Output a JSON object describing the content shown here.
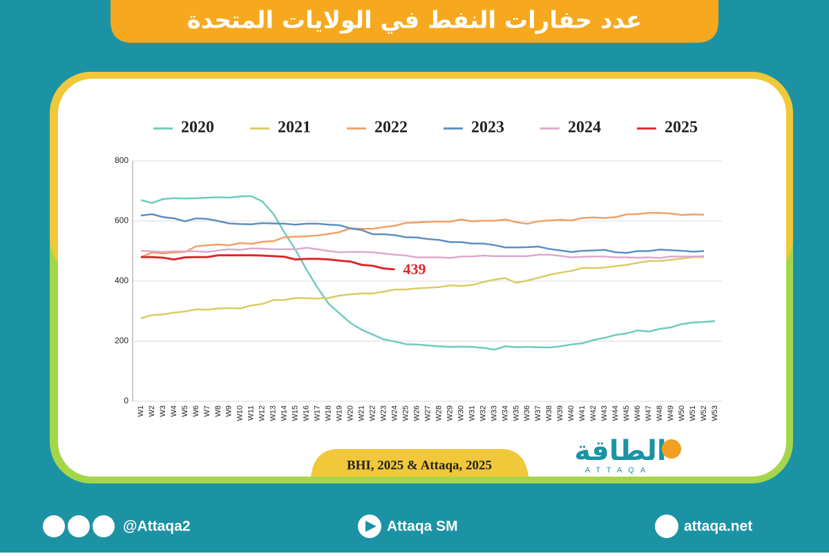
{
  "header": {
    "title": "عدد حفارات النفط في الولايات المتحدة"
  },
  "chart_data": {
    "type": "line",
    "categories": [
      "W1",
      "W2",
      "W3",
      "W4",
      "W5",
      "W6",
      "W7",
      "W8",
      "W9",
      "W10",
      "W11",
      "W12",
      "W13",
      "W14",
      "W15",
      "W16",
      "W17",
      "W18",
      "W19",
      "W20",
      "W21",
      "W22",
      "W23",
      "W24",
      "W25",
      "W26",
      "W27",
      "W28",
      "W29",
      "W30",
      "W31",
      "W32",
      "W33",
      "W34",
      "W35",
      "W36",
      "W37",
      "W38",
      "W39",
      "W40",
      "W41",
      "W42",
      "W43",
      "W44",
      "W45",
      "W46",
      "W47",
      "W48",
      "W49",
      "W50",
      "W51",
      "W52",
      "W53"
    ],
    "series": [
      {
        "name": "2020",
        "color": "#6ccbbf",
        "values": [
          670,
          660,
          673,
          676,
          675,
          676,
          678,
          679,
          678,
          682,
          683,
          665,
          624,
          562,
          504,
          438,
          378,
          325,
          292,
          260,
          238,
          222,
          206,
          199,
          190,
          189,
          186,
          183,
          181,
          182,
          181,
          178,
          172,
          183,
          180,
          181,
          180,
          179,
          183,
          189,
          193,
          204,
          211,
          221,
          226,
          236,
          232,
          241,
          246,
          257,
          262,
          264,
          267
        ]
      },
      {
        "name": "2021",
        "color": "#d8cc62",
        "values": [
          276,
          287,
          289,
          295,
          299,
          306,
          305,
          309,
          310,
          309,
          319,
          324,
          337,
          337,
          344,
          343,
          342,
          344,
          352,
          356,
          359,
          359,
          365,
          372,
          372,
          376,
          378,
          380,
          386,
          384,
          387,
          397,
          405,
          410,
          394,
          402,
          411,
          421,
          428,
          434,
          444,
          443,
          445,
          450,
          454,
          461,
          467,
          467,
          471,
          475,
          480,
          480,
          null
        ]
      },
      {
        "name": "2022",
        "color": "#f0a064",
        "values": [
          480,
          495,
          492,
          495,
          497,
          516,
          519,
          522,
          519,
          527,
          524,
          531,
          533,
          546,
          548,
          549,
          552,
          557,
          563,
          576,
          574,
          574,
          580,
          584,
          594,
          595,
          597,
          598,
          598,
          605,
          599,
          601,
          601,
          605,
          596,
          591,
          599,
          602,
          604,
          602,
          610,
          612,
          610,
          613,
          622,
          623,
          627,
          627,
          625,
          620,
          622,
          621,
          null
        ]
      },
      {
        "name": "2023",
        "color": "#5b8ec0",
        "values": [
          618,
          623,
          613,
          609,
          599,
          609,
          607,
          600,
          592,
          590,
          589,
          593,
          592,
          591,
          588,
          591,
          591,
          588,
          586,
          575,
          570,
          556,
          556,
          553,
          546,
          545,
          540,
          537,
          530,
          530,
          525,
          525,
          520,
          512,
          512,
          513,
          515,
          507,
          502,
          497,
          501,
          502,
          504,
          496,
          494,
          500,
          500,
          505,
          503,
          501,
          498,
          500,
          null
        ]
      },
      {
        "name": "2024",
        "color": "#dca8cc",
        "values": [
          501,
          499,
          497,
          499,
          499,
          499,
          497,
          502,
          506,
          504,
          509,
          508,
          506,
          506,
          506,
          511,
          506,
          500,
          496,
          497,
          497,
          496,
          492,
          488,
          485,
          479,
          479,
          479,
          477,
          482,
          482,
          485,
          483,
          483,
          483,
          483,
          488,
          488,
          484,
          479,
          481,
          482,
          482,
          479,
          479,
          478,
          479,
          477,
          482,
          482,
          482,
          483,
          null
        ]
      },
      {
        "name": "2025",
        "color": "#e0262a",
        "values": [
          480,
          480,
          478,
          472,
          479,
          480,
          480,
          486,
          486,
          486,
          486,
          485,
          483,
          481,
          472,
          474,
          474,
          472,
          468,
          465,
          454,
          451,
          442,
          439,
          null,
          null,
          null,
          null,
          null,
          null,
          null,
          null,
          null,
          null,
          null,
          null,
          null,
          null,
          null,
          null,
          null,
          null,
          null,
          null,
          null,
          null,
          null,
          null,
          null,
          null,
          null,
          null,
          null
        ]
      }
    ],
    "annotation": "439",
    "ylim": [
      0,
      800
    ],
    "yticks": [
      0,
      200,
      400,
      600,
      800
    ],
    "grid": true,
    "legend": "top"
  },
  "source": "BHI, 2025 & Attaqa, 2025",
  "logo": {
    "arabic": "الطاقة",
    "latin": "ATTAQA"
  },
  "footer": {
    "social": "@Attaqa2",
    "youtube": "Attaqa SM",
    "website": "attaqa.net"
  }
}
